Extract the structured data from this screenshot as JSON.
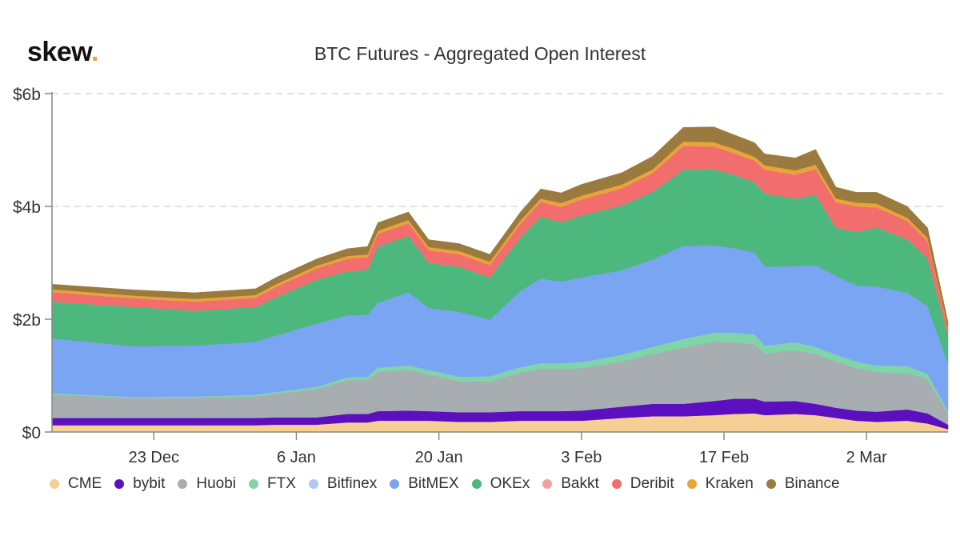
{
  "brand": {
    "name": "skew",
    "dot": "."
  },
  "chart_data": {
    "type": "area",
    "stacked": true,
    "title": "BTC Futures - Aggregated Open Interest",
    "xlabel": "",
    "ylabel": "",
    "ylim": [
      0,
      6
    ],
    "y_unit": "billion USD",
    "y_ticks": [
      {
        "value": 0,
        "label": "$0"
      },
      {
        "value": 2,
        "label": "$2b"
      },
      {
        "value": 4,
        "label": "$4b"
      },
      {
        "value": 6,
        "label": "$6b"
      }
    ],
    "x_range_days": [
      0,
      88
    ],
    "x_ticks": [
      {
        "day": 10,
        "label": "23 Dec"
      },
      {
        "day": 24,
        "label": "6 Jan"
      },
      {
        "day": 38,
        "label": "20 Jan"
      },
      {
        "day": 52,
        "label": "3 Feb"
      },
      {
        "day": 66,
        "label": "17 Feb"
      },
      {
        "day": 80,
        "label": "2 Mar"
      }
    ],
    "grid": true,
    "legend_position": "bottom",
    "x": [
      0,
      8,
      14,
      20,
      22,
      26,
      29,
      31,
      32,
      35,
      37,
      40,
      43,
      46,
      48,
      50,
      52,
      56,
      59,
      62,
      65,
      67,
      69,
      70,
      73,
      75,
      77,
      79,
      81,
      84,
      86,
      88
    ],
    "series": [
      {
        "name": "CME",
        "color": "#f5cf96",
        "values": [
          0.12,
          0.12,
          0.12,
          0.12,
          0.13,
          0.13,
          0.17,
          0.17,
          0.2,
          0.2,
          0.2,
          0.18,
          0.18,
          0.2,
          0.2,
          0.2,
          0.2,
          0.25,
          0.28,
          0.28,
          0.3,
          0.32,
          0.33,
          0.3,
          0.32,
          0.3,
          0.25,
          0.2,
          0.18,
          0.2,
          0.15,
          0.05
        ]
      },
      {
        "name": "bybit",
        "color": "#5b0fbe",
        "values": [
          0.13,
          0.13,
          0.13,
          0.13,
          0.13,
          0.13,
          0.15,
          0.15,
          0.17,
          0.18,
          0.17,
          0.17,
          0.17,
          0.17,
          0.17,
          0.17,
          0.18,
          0.2,
          0.22,
          0.22,
          0.25,
          0.27,
          0.26,
          0.24,
          0.23,
          0.2,
          0.18,
          0.18,
          0.18,
          0.2,
          0.18,
          0.08
        ]
      },
      {
        "name": "Huobi",
        "color": "#a8adb2",
        "values": [
          0.42,
          0.35,
          0.36,
          0.38,
          0.42,
          0.5,
          0.6,
          0.6,
          0.7,
          0.72,
          0.65,
          0.55,
          0.55,
          0.68,
          0.75,
          0.75,
          0.75,
          0.8,
          0.88,
          1.0,
          1.05,
          1.0,
          0.97,
          0.85,
          0.9,
          0.88,
          0.82,
          0.75,
          0.7,
          0.65,
          0.6,
          0.2
        ]
      },
      {
        "name": "FTX",
        "color": "#7fd4a8",
        "values": [
          0.02,
          0.02,
          0.02,
          0.03,
          0.03,
          0.04,
          0.05,
          0.06,
          0.07,
          0.08,
          0.08,
          0.08,
          0.09,
          0.1,
          0.1,
          0.1,
          0.11,
          0.12,
          0.13,
          0.15,
          0.16,
          0.17,
          0.17,
          0.14,
          0.14,
          0.13,
          0.12,
          0.12,
          0.12,
          0.12,
          0.1,
          0.04
        ]
      },
      {
        "name": "Bitfinex",
        "color": "#b0c8f6",
        "values": [
          0.0,
          0.0,
          0.0,
          0.0,
          0.0,
          0.0,
          0.0,
          0.0,
          0.0,
          0.0,
          0.0,
          0.0,
          0.0,
          0.0,
          0.0,
          0.0,
          0.0,
          0.0,
          0.0,
          0.0,
          0.0,
          0.0,
          0.0,
          0.0,
          0.0,
          0.0,
          0.0,
          0.0,
          0.0,
          0.0,
          0.0,
          0.0
        ]
      },
      {
        "name": "BitMEX",
        "color": "#7aa5f3",
        "values": [
          0.97,
          0.9,
          0.9,
          0.94,
          1.0,
          1.12,
          1.1,
          1.1,
          1.15,
          1.3,
          1.1,
          1.15,
          1.0,
          1.35,
          1.5,
          1.45,
          1.5,
          1.5,
          1.55,
          1.65,
          1.55,
          1.5,
          1.45,
          1.4,
          1.35,
          1.45,
          1.4,
          1.35,
          1.4,
          1.3,
          1.2,
          0.85
        ]
      },
      {
        "name": "OKEx",
        "color": "#4cb87e",
        "values": [
          0.65,
          0.7,
          0.62,
          0.62,
          0.68,
          0.78,
          0.78,
          0.8,
          1.0,
          1.0,
          0.8,
          0.8,
          0.75,
          0.95,
          1.1,
          1.05,
          1.1,
          1.15,
          1.2,
          1.35,
          1.35,
          1.3,
          1.25,
          1.3,
          1.2,
          1.25,
          0.85,
          0.95,
          1.05,
          0.95,
          0.85,
          0.5
        ]
      },
      {
        "name": "Bakkt",
        "color": "#f2a09a",
        "values": [
          0.0,
          0.0,
          0.0,
          0.0,
          0.0,
          0.0,
          0.0,
          0.0,
          0.0,
          0.0,
          0.0,
          0.0,
          0.0,
          0.0,
          0.0,
          0.0,
          0.0,
          0.0,
          0.0,
          0.0,
          0.0,
          0.0,
          0.0,
          0.0,
          0.0,
          0.0,
          0.0,
          0.0,
          0.0,
          0.0,
          0.0,
          0.0
        ]
      },
      {
        "name": "Deribit",
        "color": "#f26d6d",
        "values": [
          0.17,
          0.15,
          0.16,
          0.16,
          0.18,
          0.2,
          0.22,
          0.22,
          0.22,
          0.22,
          0.22,
          0.22,
          0.22,
          0.24,
          0.26,
          0.27,
          0.28,
          0.3,
          0.33,
          0.42,
          0.4,
          0.38,
          0.38,
          0.42,
          0.42,
          0.45,
          0.45,
          0.45,
          0.35,
          0.32,
          0.3,
          0.12
        ]
      },
      {
        "name": "Kraken",
        "color": "#e8a33a",
        "values": [
          0.05,
          0.05,
          0.05,
          0.05,
          0.05,
          0.05,
          0.05,
          0.05,
          0.06,
          0.06,
          0.06,
          0.06,
          0.06,
          0.06,
          0.06,
          0.07,
          0.07,
          0.07,
          0.07,
          0.08,
          0.08,
          0.08,
          0.07,
          0.08,
          0.08,
          0.08,
          0.07,
          0.07,
          0.07,
          0.06,
          0.06,
          0.03
        ]
      },
      {
        "name": "Binance",
        "color": "#9a7a3e",
        "values": [
          0.09,
          0.1,
          0.11,
          0.11,
          0.12,
          0.12,
          0.13,
          0.14,
          0.14,
          0.14,
          0.13,
          0.13,
          0.13,
          0.15,
          0.17,
          0.18,
          0.2,
          0.21,
          0.23,
          0.25,
          0.27,
          0.25,
          0.25,
          0.2,
          0.22,
          0.27,
          0.2,
          0.18,
          0.2,
          0.2,
          0.18,
          0.08
        ]
      }
    ]
  }
}
